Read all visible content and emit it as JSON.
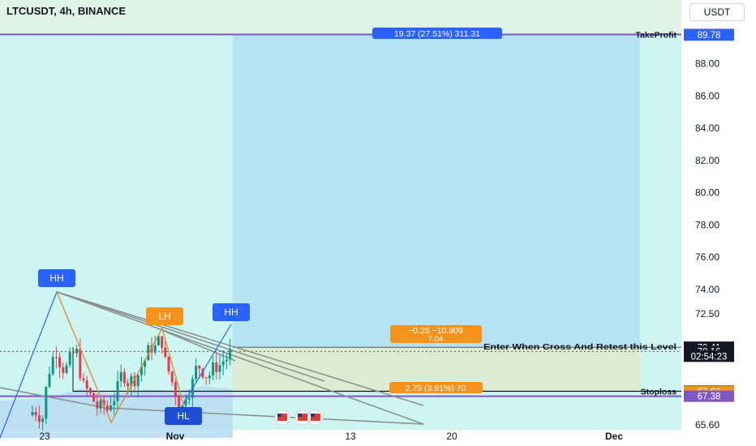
{
  "header": {
    "symbol": "LTCUSDT, 4h, BINANCE",
    "currency": "USDT"
  },
  "chart_data": {
    "type": "candlestick",
    "symbol": "LTCUSDT",
    "interval": "4h",
    "exchange": "BINANCE",
    "y_axis": {
      "range": [
        65.3,
        91.2
      ],
      "ticks": [
        "65.60",
        "72.50",
        "74.00",
        "76.00",
        "78.00",
        "80.00",
        "82.00",
        "84.00",
        "86.00",
        "88.00"
      ]
    },
    "x_axis": {
      "ticks": [
        "23",
        "Nov",
        "13",
        "20",
        "Dec"
      ]
    },
    "price_labels": [
      {
        "text": "89.82",
        "value": 89.82,
        "color": "#7e57c2"
      },
      {
        "text": "89.78",
        "value": 89.78,
        "color": "#2962ff"
      },
      {
        "text": "70.42",
        "value": 70.42,
        "color": "#131722"
      },
      {
        "text": "70.41",
        "value": 70.41,
        "color": "#131722"
      },
      {
        "text": "70.16",
        "value": 70.16,
        "color": "#131722"
      },
      {
        "text": "02:54:23",
        "value": 69.86,
        "color": "#131722"
      },
      {
        "text": "67.69",
        "value": 67.69,
        "color": "#131722"
      },
      {
        "text": "67.66",
        "value": 67.66,
        "color": "#f7931a"
      },
      {
        "text": "67.38",
        "value": 67.38,
        "color": "#7e57c2"
      }
    ],
    "lines": [
      {
        "label": "TakeProfit",
        "value": 89.82
      },
      {
        "label": "Stoploss",
        "value": 67.69
      },
      {
        "label": "Enter When Cross And Retest this Level",
        "value": 70.42
      }
    ],
    "position_labels": {
      "target": "19.37 (27.51%) 311.31",
      "entry": "−0.25 −10.909",
      "entry_sub": "7.04",
      "stop": "2.75 (3.91%) 70"
    },
    "patterns": [
      "HH",
      "LH",
      "HH",
      "HL"
    ]
  }
}
